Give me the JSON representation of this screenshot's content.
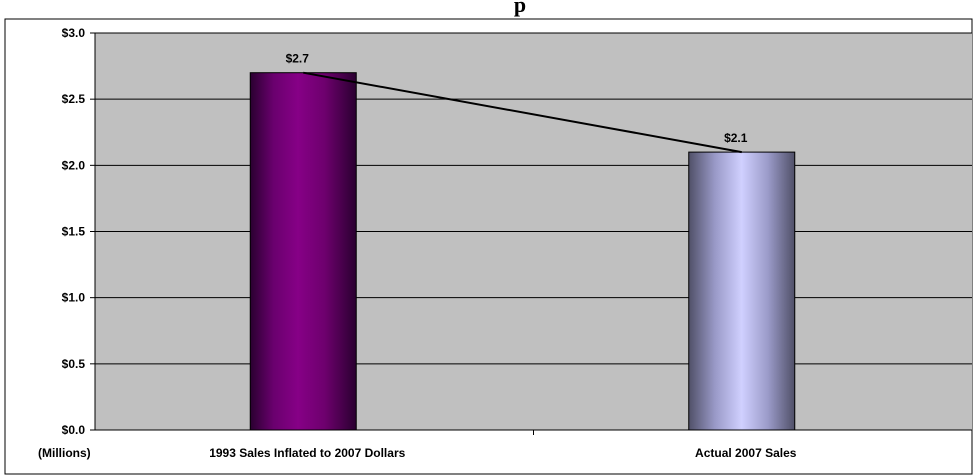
{
  "chart_data": {
    "type": "bar",
    "title": "p",
    "categories": [
      "1993 Sales Inflated to 2007 Dollars",
      "Actual 2007 Sales"
    ],
    "values": [
      2.7,
      2.1
    ],
    "data_labels": [
      "$2.7",
      "$2.1"
    ],
    "ylabel": "(Millions)",
    "ylim": [
      0,
      3.0
    ],
    "yticks": [
      0,
      0.5,
      1.0,
      1.5,
      2.0,
      2.5,
      3.0
    ],
    "ytick_labels": [
      "$0.0",
      "$0.5",
      "$1.0",
      "$1.5",
      "$2.0",
      "$2.5",
      "$3.0"
    ],
    "grid": true,
    "trend_line": true,
    "colors": {
      "plot_background": "#c0c0c0",
      "bar_1": "#800080",
      "bar_2": "#c8c8ff",
      "gridline": "#000000",
      "trend_line": "#000000"
    }
  }
}
